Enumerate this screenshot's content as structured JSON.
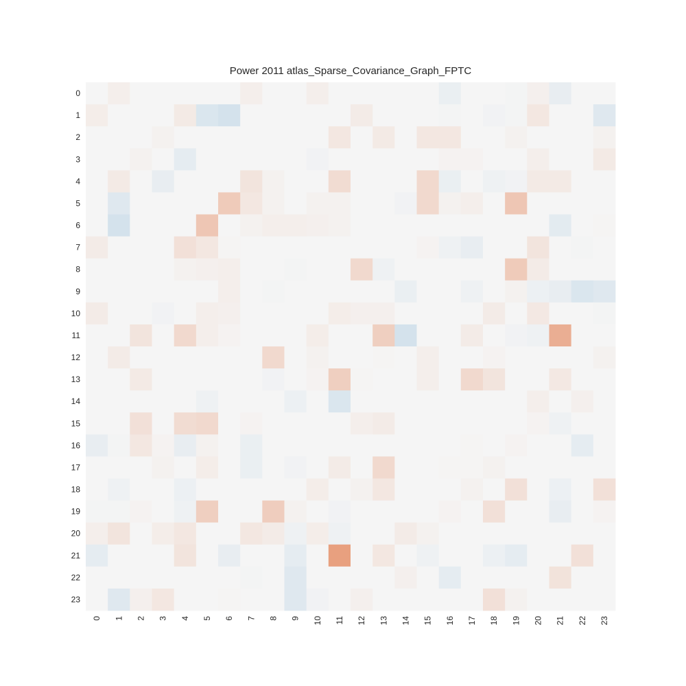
{
  "chart_data": {
    "type": "heatmap",
    "title": "Power 2011 atlas_Sparse_Covariance_Graph_FPTC",
    "xlabel": "",
    "ylabel": "",
    "x_ticks": [
      "0",
      "1",
      "2",
      "3",
      "4",
      "5",
      "6",
      "7",
      "8",
      "9",
      "10",
      "11",
      "12",
      "13",
      "14",
      "15",
      "16",
      "17",
      "18",
      "19",
      "20",
      "21",
      "22",
      "23"
    ],
    "y_ticks": [
      "0",
      "1",
      "2",
      "3",
      "4",
      "5",
      "6",
      "7",
      "8",
      "9",
      "10",
      "11",
      "12",
      "13",
      "14",
      "15",
      "16",
      "17",
      "18",
      "19",
      "20",
      "21",
      "22",
      "23"
    ],
    "colormap": "RdBu_r (diverging, centered at 0)",
    "value_range": [
      -1,
      1
    ],
    "grid": false,
    "colors": {
      "positive": "#e8a07f",
      "negative": "#6fa8d0",
      "neutral": "#f5f5f5"
    },
    "values": [
      [
        0,
        0.05,
        0,
        0,
        0,
        0,
        0,
        0.05,
        0,
        0,
        0.05,
        0,
        0,
        0,
        0,
        0,
        -0.05,
        0,
        0,
        -0.01,
        0.04,
        -0.06,
        0,
        0
      ],
      [
        0.06,
        0,
        0,
        0,
        0.08,
        -0.12,
        -0.15,
        0,
        0,
        0,
        0,
        0,
        0.07,
        0,
        0,
        0,
        -0.01,
        0,
        -0.02,
        -0.01,
        0.1,
        0,
        0,
        -0.1
      ],
      [
        0,
        0,
        0,
        0.03,
        0,
        0,
        0,
        0,
        0,
        0,
        0,
        0.1,
        0,
        0.08,
        0,
        0.1,
        0.1,
        0,
        0,
        0.03,
        0,
        0,
        0,
        0.03
      ],
      [
        0,
        0,
        0.03,
        0,
        -0.07,
        0,
        0,
        0,
        0,
        0,
        -0.02,
        0,
        0,
        0,
        0,
        0,
        0.02,
        0.02,
        0,
        0,
        0.05,
        0,
        0,
        0.08
      ],
      [
        0,
        0.08,
        0,
        -0.06,
        0,
        0,
        0,
        0.12,
        0.03,
        0,
        0,
        0.18,
        0,
        0,
        0,
        0.2,
        -0.05,
        0,
        -0.03,
        -0.02,
        0.08,
        0.08,
        0,
        0
      ],
      [
        0,
        -0.1,
        0,
        0,
        0,
        0,
        0.3,
        0.1,
        0.03,
        0,
        0.03,
        0.03,
        0,
        0,
        -0.02,
        0.2,
        0.03,
        0.05,
        0,
        0.33,
        0,
        0,
        0,
        0
      ],
      [
        0,
        -0.15,
        0,
        0,
        0,
        0.33,
        0,
        0.03,
        0.05,
        0.05,
        0.04,
        0.03,
        0,
        0,
        0,
        0,
        0,
        0,
        0,
        0,
        0,
        -0.08,
        0,
        0.01
      ],
      [
        0.07,
        0,
        0,
        0,
        0.15,
        0.1,
        0.01,
        0,
        0,
        0,
        0,
        0,
        0,
        0,
        0,
        0.02,
        -0.03,
        -0.06,
        0,
        0,
        0.12,
        0,
        -0.01,
        0
      ],
      [
        0,
        0,
        0,
        0,
        0.03,
        0.04,
        0.05,
        0,
        0,
        -0.01,
        0,
        0,
        0.2,
        -0.03,
        0,
        0,
        0,
        0,
        0,
        0.3,
        0.07,
        0,
        0,
        0
      ],
      [
        0,
        0,
        0,
        0,
        0,
        0,
        0.05,
        0,
        -0.01,
        0,
        0,
        0,
        0,
        0,
        -0.05,
        0,
        0,
        -0.03,
        0,
        0.03,
        -0.04,
        -0.06,
        -0.12,
        -0.1
      ],
      [
        0.07,
        0,
        0,
        -0.02,
        0,
        0.05,
        0.04,
        0,
        0,
        0,
        0,
        0.06,
        0.04,
        0.04,
        0,
        0,
        0,
        0,
        0.07,
        0,
        0.09,
        0,
        0,
        -0.01
      ],
      [
        0,
        0,
        0.12,
        0,
        0.2,
        0.05,
        0.02,
        0,
        0,
        0,
        0.06,
        0,
        0,
        0.27,
        -0.15,
        0,
        0,
        0.07,
        0,
        -0.02,
        -0.03,
        0.5,
        0,
        0
      ],
      [
        0,
        0.07,
        0,
        0,
        0,
        0,
        0,
        0,
        0.2,
        0,
        0.03,
        0,
        0,
        0.01,
        0,
        0.05,
        0,
        0,
        0.02,
        0,
        0,
        0,
        0,
        0.03
      ],
      [
        0,
        0,
        0.08,
        0,
        0,
        0,
        0,
        0,
        -0.02,
        0,
        0.02,
        0.27,
        0.01,
        0,
        0,
        0.05,
        0,
        0.2,
        0.12,
        0,
        0,
        0.09,
        0,
        0
      ],
      [
        0,
        0,
        0,
        0,
        0,
        -0.03,
        0,
        0,
        0,
        -0.04,
        0,
        -0.12,
        0,
        0,
        0,
        0,
        0,
        0,
        0,
        0,
        0.05,
        0,
        0.04,
        0
      ],
      [
        0,
        0,
        0.15,
        0,
        0.18,
        0.2,
        0,
        0.02,
        0,
        0,
        0,
        0,
        0.05,
        0.07,
        0,
        0,
        0,
        0,
        0,
        0,
        0.02,
        -0.03,
        0,
        0
      ],
      [
        -0.06,
        -0.01,
        0.1,
        0.02,
        -0.06,
        0.03,
        0,
        -0.05,
        0,
        0,
        0,
        0,
        0,
        0,
        0,
        0,
        0,
        0.01,
        0,
        0.02,
        0,
        0,
        -0.07,
        0
      ],
      [
        0,
        0,
        0,
        0.03,
        0,
        0.06,
        0,
        -0.05,
        0,
        -0.02,
        0,
        0.07,
        0,
        0.2,
        0,
        0,
        0.01,
        0.01,
        0.03,
        0,
        0,
        0,
        0,
        0
      ],
      [
        0,
        -0.03,
        0,
        0,
        -0.04,
        0,
        0,
        0,
        0,
        0,
        0.06,
        0,
        0.03,
        0.1,
        0,
        0,
        0,
        0.03,
        0,
        0.15,
        0,
        -0.04,
        0,
        0.15
      ],
      [
        -0.01,
        -0.01,
        0.02,
        0,
        -0.03,
        0.27,
        0,
        0,
        0.28,
        0.03,
        0,
        -0.02,
        0,
        0,
        0,
        0,
        0.02,
        0,
        0.15,
        0,
        0,
        -0.06,
        0,
        0.02
      ],
      [
        0.05,
        0.12,
        0,
        0.06,
        0.1,
        0,
        0,
        0.1,
        0.07,
        -0.03,
        0.06,
        -0.03,
        0,
        0,
        0.07,
        0.03,
        0,
        0,
        0,
        0,
        0,
        0,
        0,
        0
      ],
      [
        -0.07,
        0,
        0,
        0,
        0.12,
        0,
        -0.06,
        0,
        0,
        -0.07,
        0,
        0.6,
        0,
        0.1,
        0,
        -0.03,
        0,
        0,
        -0.04,
        -0.07,
        0,
        0,
        0.15,
        0
      ],
      [
        0,
        0,
        0,
        0,
        0,
        0,
        0,
        -0.01,
        0,
        -0.1,
        0,
        0,
        0,
        0,
        0.04,
        0,
        -0.07,
        0,
        0,
        0,
        0,
        0.13,
        0,
        0
      ],
      [
        0,
        -0.1,
        0.04,
        0.1,
        0,
        0,
        0.01,
        0,
        0,
        -0.1,
        -0.02,
        0,
        0.04,
        0,
        0,
        0,
        0,
        0,
        0.15,
        0.03,
        0,
        0,
        0,
        0
      ]
    ]
  }
}
